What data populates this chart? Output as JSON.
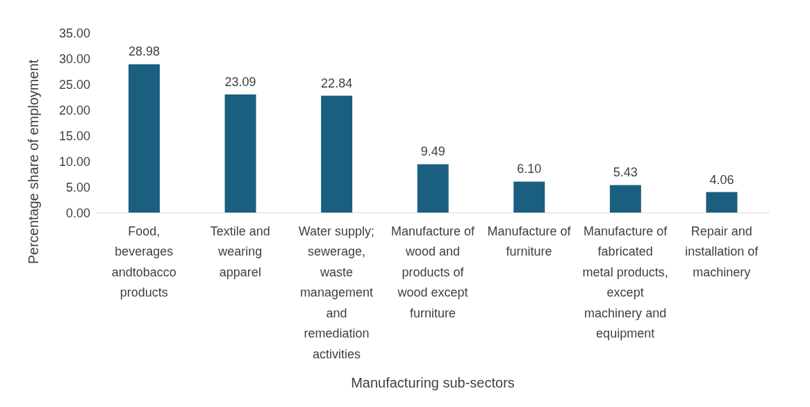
{
  "chart_data": {
    "type": "bar",
    "xlabel": "Manufacturing sub-sectors",
    "ylabel": "Percentage share of employment",
    "categories": [
      "Food, beverages andtobacco products",
      "Textile and wearing apparel",
      "Water supply; sewerage, waste management and remediation activities",
      "Manufacture of wood and products of wood except furniture",
      "Manufacture of furniture",
      "Manufacture of fabricated metal products, except machinery and equipment",
      "Repair and installation of machinery"
    ],
    "values": [
      28.98,
      23.09,
      22.84,
      9.49,
      6.1,
      5.43,
      4.06
    ],
    "value_labels": [
      "28.98",
      "23.09",
      "22.84",
      "9.49",
      "6.10",
      "5.43",
      "4.06"
    ],
    "color": "#1a5f80",
    "ylim": [
      0,
      35
    ],
    "yticks": [
      {
        "value": 0,
        "label": "0.00"
      },
      {
        "value": 5,
        "label": "5.00"
      },
      {
        "value": 10,
        "label": "10.00"
      },
      {
        "value": 15,
        "label": "15.00"
      },
      {
        "value": 20,
        "label": "20.00"
      },
      {
        "value": 25,
        "label": "25.00"
      },
      {
        "value": 30,
        "label": "30.00"
      },
      {
        "value": 35,
        "label": "35.00"
      }
    ],
    "grid": false,
    "legend": false
  }
}
